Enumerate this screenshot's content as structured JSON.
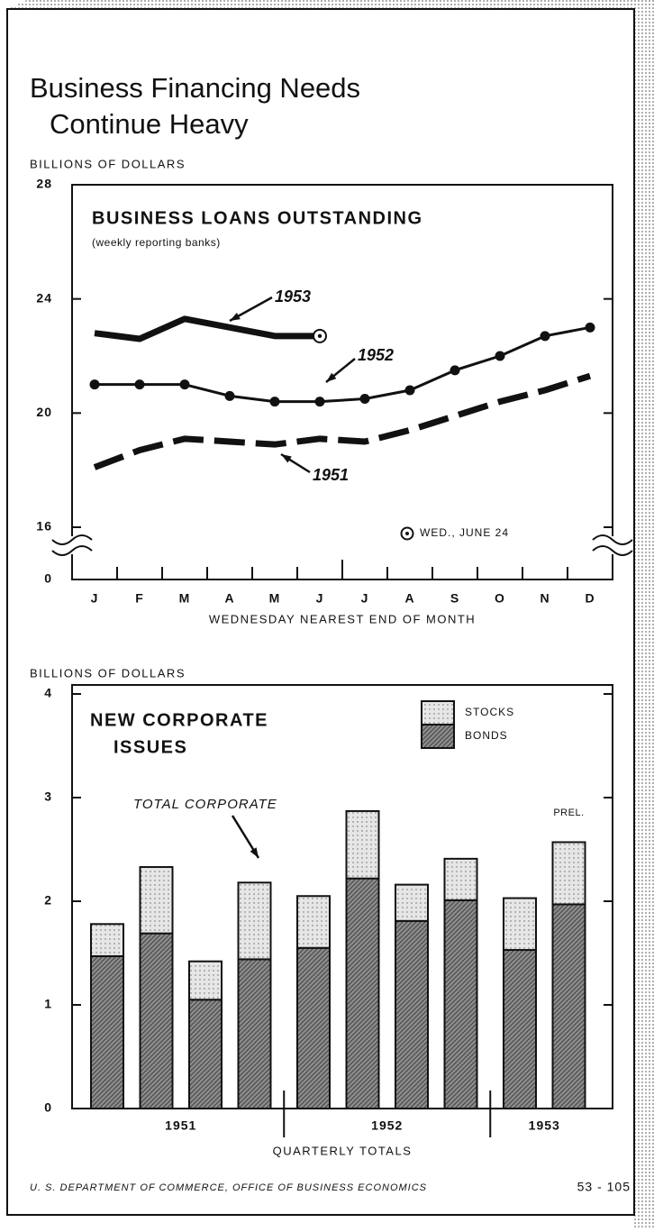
{
  "header": {
    "title_lines": [
      "Business Financing Needs",
      "Continue Heavy"
    ]
  },
  "chart_data": [
    {
      "type": "line",
      "title": "BUSINESS LOANS OUTSTANDING",
      "subtitle": "(weekly reporting banks)",
      "y_label": "BILLIONS OF DOLLARS",
      "x_label": "WEDNESDAY NEAREST END OF MONTH",
      "categories": [
        "J",
        "F",
        "M",
        "A",
        "M",
        "J",
        "J",
        "A",
        "S",
        "O",
        "N",
        "D"
      ],
      "series": [
        {
          "name": "1953",
          "color": "#111111",
          "line_width": 7,
          "dashed": false,
          "markers": false,
          "values": [
            22.8,
            22.6,
            23.3,
            23.0,
            22.7,
            22.7,
            null,
            null,
            null,
            null,
            null,
            null
          ]
        },
        {
          "name": "1952",
          "color": "#111111",
          "line_width": 3,
          "dashed": false,
          "markers": true,
          "values": [
            21.0,
            21.0,
            21.0,
            20.6,
            20.4,
            20.4,
            20.5,
            20.8,
            21.5,
            22.0,
            22.7,
            23.0
          ]
        },
        {
          "name": "1951",
          "color": "#111111",
          "line_width": 7,
          "dashed": true,
          "markers": false,
          "values": [
            18.1,
            18.7,
            19.1,
            19.0,
            18.9,
            19.1,
            19.0,
            19.4,
            19.9,
            20.4,
            20.8,
            21.3
          ]
        }
      ],
      "annotation": "WED., JUNE 24",
      "ylim": [
        0,
        28
      ],
      "axis_break": [
        0,
        16
      ],
      "yticks": [
        0,
        16,
        20,
        24,
        28
      ]
    },
    {
      "type": "stacked_bar",
      "title_lines": [
        "NEW CORPORATE",
        "ISSUES"
      ],
      "y_label": "BILLIONS OF DOLLARS",
      "x_label": "QUARTERLY TOTALS",
      "categories": [
        null,
        null,
        null,
        null,
        null,
        null,
        null,
        null,
        null,
        null
      ],
      "groups": [
        "1951",
        "1952",
        "1953"
      ],
      "series": [
        {
          "name": "BONDS",
          "color": "#8c8c8c",
          "values": [
            1.47,
            1.69,
            1.05,
            1.44,
            1.55,
            2.22,
            1.81,
            2.01,
            1.53,
            1.97
          ]
        },
        {
          "name": "STOCKS",
          "color": "#e6e6e6",
          "values": [
            0.31,
            0.64,
            0.37,
            0.74,
            0.5,
            0.65,
            0.35,
            0.4,
            0.5,
            0.6
          ]
        }
      ],
      "annotations": [
        "TOTAL CORPORATE",
        "PREL."
      ],
      "ylim": [
        0,
        4
      ],
      "yticks": [
        0,
        1,
        2,
        3,
        4
      ]
    }
  ],
  "footer": {
    "source": "U. S. DEPARTMENT OF COMMERCE, OFFICE OF BUSINESS ECONOMICS",
    "code": "53 - 105"
  }
}
